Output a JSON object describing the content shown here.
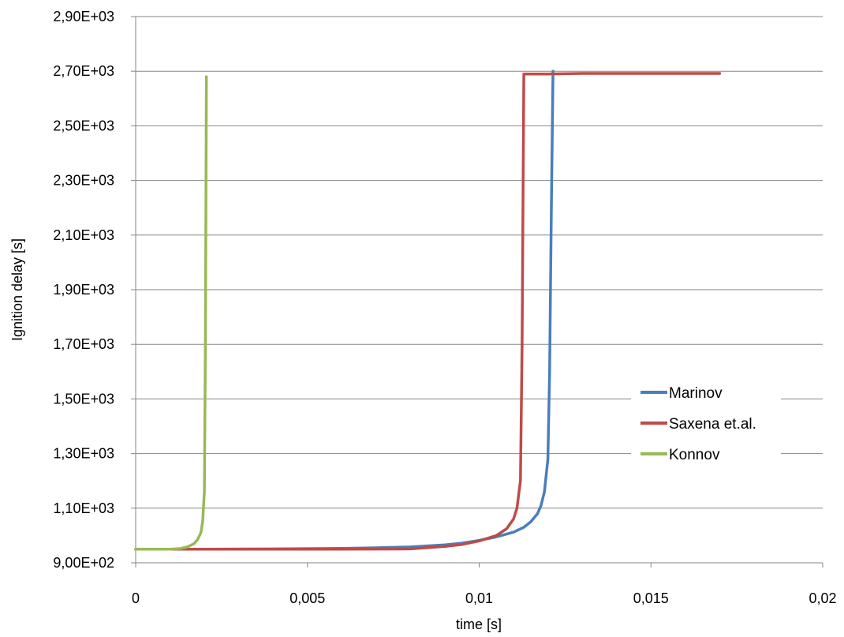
{
  "chart_data": {
    "type": "line",
    "xlabel": "time [s]",
    "ylabel": "Ignition delay [s]",
    "xlim": [
      0,
      0.02
    ],
    "ylim": [
      900,
      2900
    ],
    "x_ticks": [
      "0",
      "0,005",
      "0,01",
      "0,015",
      "0,02"
    ],
    "y_ticks": [
      "9,00E+02",
      "1,10E+03",
      "1,30E+03",
      "1,50E+03",
      "1,70E+03",
      "1,90E+03",
      "2,10E+03",
      "2,30E+03",
      "2,50E+03",
      "2,70E+03",
      "2,90E+03"
    ],
    "grid": "horizontal",
    "legend_position": "right",
    "series": [
      {
        "name": "Marinov",
        "color": "#4a7ebb",
        "x": [
          0,
          0.002,
          0.004,
          0.006,
          0.007,
          0.008,
          0.009,
          0.0095,
          0.01,
          0.0105,
          0.011,
          0.0113,
          0.0115,
          0.0117,
          0.0118,
          0.0119,
          0.012,
          0.01205,
          0.0121,
          0.01215
        ],
        "y": [
          950,
          950,
          951,
          953,
          955,
          958,
          966,
          972,
          982,
          995,
          1012,
          1030,
          1050,
          1080,
          1110,
          1160,
          1280,
          1600,
          2200,
          2700
        ]
      },
      {
        "name": "Saxena et.al.",
        "color": "#be4b48",
        "x": [
          0,
          0.002,
          0.004,
          0.006,
          0.008,
          0.009,
          0.0095,
          0.01,
          0.0105,
          0.0108,
          0.011,
          0.0111,
          0.0112,
          0.01125,
          0.0113,
          0.0114,
          0.012,
          0.013,
          0.015,
          0.017
        ],
        "y": [
          950,
          950,
          950,
          950,
          951,
          960,
          967,
          980,
          1000,
          1025,
          1060,
          1100,
          1200,
          1700,
          2690,
          2690,
          2690,
          2692,
          2692,
          2692
        ]
      },
      {
        "name": "Konnov",
        "color": "#98b954",
        "x": [
          0,
          0.0005,
          0.001,
          0.0013,
          0.0015,
          0.0017,
          0.0018,
          0.0019,
          0.00195,
          0.002,
          0.00203,
          0.00206
        ],
        "y": [
          950,
          950,
          950,
          952,
          958,
          970,
          985,
          1010,
          1050,
          1160,
          1700,
          2680
        ]
      }
    ]
  }
}
